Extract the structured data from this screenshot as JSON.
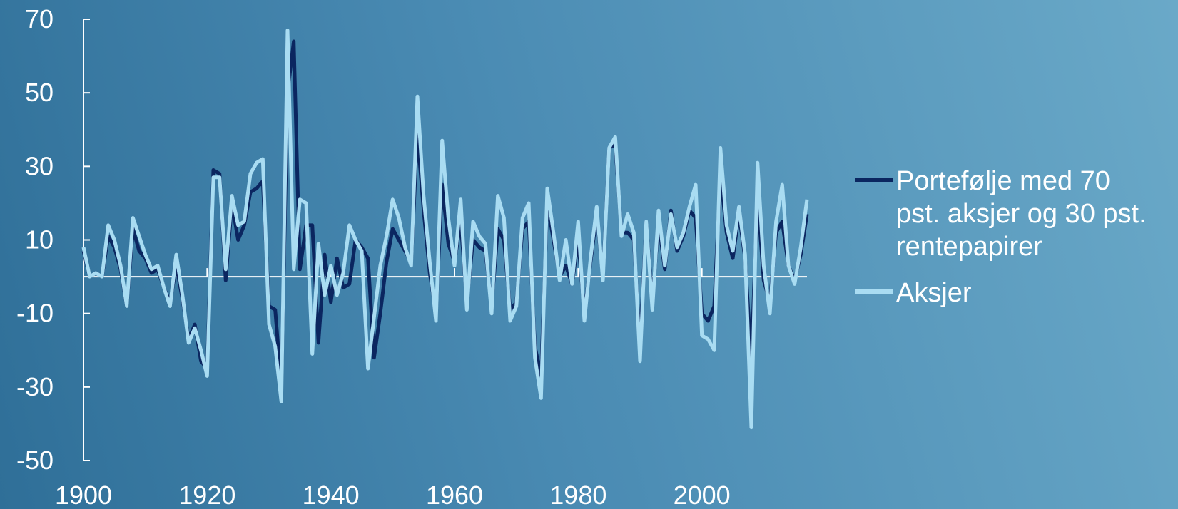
{
  "chart_data": {
    "type": "line",
    "title": "",
    "xlabel": "",
    "ylabel": "",
    "xlim": [
      1900,
      2017
    ],
    "ylim": [
      -50,
      70
    ],
    "y_ticks": [
      70,
      50,
      30,
      10,
      -10,
      -30,
      -50
    ],
    "y_tick_labels": [
      "70",
      "50",
      "30",
      "10",
      "-10",
      "-30",
      "-50"
    ],
    "x_ticks": [
      1900,
      1920,
      1940,
      1960,
      1980,
      2000
    ],
    "x_tick_labels": [
      "1900",
      "1920",
      "1940",
      "1960",
      "1980",
      "2000"
    ],
    "zero_line": true,
    "grid": false,
    "legend_position": "right",
    "colors": {
      "portfolio": "#0b2660",
      "aksjer": "#a9dcf2",
      "axis": "#ffffff"
    },
    "x": [
      1900,
      1901,
      1902,
      1903,
      1904,
      1905,
      1906,
      1907,
      1908,
      1909,
      1910,
      1911,
      1912,
      1913,
      1914,
      1915,
      1916,
      1917,
      1918,
      1919,
      1920,
      1921,
      1922,
      1923,
      1924,
      1925,
      1926,
      1927,
      1928,
      1929,
      1930,
      1931,
      1932,
      1933,
      1934,
      1935,
      1936,
      1937,
      1938,
      1939,
      1940,
      1941,
      1942,
      1943,
      1944,
      1945,
      1946,
      1947,
      1948,
      1949,
      1950,
      1951,
      1952,
      1953,
      1954,
      1955,
      1956,
      1957,
      1958,
      1959,
      1960,
      1961,
      1962,
      1963,
      1964,
      1965,
      1966,
      1967,
      1968,
      1969,
      1970,
      1971,
      1972,
      1973,
      1974,
      1975,
      1976,
      1977,
      1978,
      1979,
      1980,
      1981,
      1982,
      1983,
      1984,
      1985,
      1986,
      1987,
      1988,
      1989,
      1990,
      1991,
      1992,
      1993,
      1994,
      1995,
      1996,
      1997,
      1998,
      1999,
      2000,
      2001,
      2002,
      2003,
      2004,
      2005,
      2006,
      2007,
      2008,
      2009,
      2010,
      2011,
      2012,
      2013,
      2014,
      2015,
      2016,
      2017
    ],
    "series": [
      {
        "name": "Portefølje med 70 pst. aksjer og 30 pst. rentepapirer",
        "values": [
          7,
          0,
          1,
          0,
          11,
          8,
          2,
          -8,
          13,
          7,
          5,
          1,
          2,
          -3,
          -7,
          3,
          -6,
          -17,
          -13,
          -23,
          -25,
          29,
          28,
          -1,
          20,
          10,
          14,
          23,
          24,
          26,
          -8,
          -9,
          -30,
          50,
          64,
          2,
          14,
          14,
          -18,
          6,
          -7,
          5,
          -3,
          -2,
          10,
          8,
          5,
          -22,
          -10,
          4,
          13,
          10,
          7,
          4,
          39,
          18,
          1,
          -10,
          25,
          9,
          4,
          15,
          -7,
          10,
          8,
          7,
          -8,
          13,
          10,
          -9,
          -7,
          13,
          15,
          -19,
          -27,
          20,
          10,
          0,
          3,
          -2,
          10,
          -10,
          4,
          17,
          0,
          35,
          36,
          12,
          12,
          10,
          -19,
          15,
          -7,
          15,
          2,
          18,
          7,
          11,
          18,
          16,
          -10,
          -12,
          -8,
          28,
          12,
          5,
          17,
          5,
          -23,
          22,
          -1,
          -7,
          12,
          15,
          3,
          -1,
          6,
          17
        ]
      },
      {
        "name": "Aksjer",
        "values": [
          8,
          0,
          1,
          0,
          14,
          10,
          3,
          -8,
          16,
          11,
          6,
          2,
          3,
          -3,
          -8,
          6,
          -5,
          -18,
          -14,
          -20,
          -27,
          27,
          27,
          2,
          22,
          14,
          15,
          28,
          31,
          32,
          -13,
          -19,
          -34,
          67,
          2,
          21,
          20,
          -21,
          9,
          -5,
          3,
          -5,
          1,
          14,
          10,
          7,
          -25,
          -11,
          3,
          11,
          21,
          16,
          8,
          3,
          49,
          22,
          4,
          -12,
          37,
          16,
          3,
          21,
          -9,
          15,
          11,
          9,
          -10,
          22,
          16,
          -12,
          -8,
          16,
          20,
          -22,
          -33,
          24,
          12,
          -1,
          10,
          -2,
          15,
          -12,
          5,
          19,
          -1,
          35,
          38,
          11,
          17,
          12,
          -23,
          15,
          -9,
          18,
          3,
          17,
          8,
          12,
          19,
          25,
          -16,
          -17,
          -20,
          35,
          14,
          7,
          19,
          6,
          -41,
          31,
          3,
          -10,
          15,
          25,
          3,
          -2,
          8,
          21
        ]
      }
    ]
  }
}
